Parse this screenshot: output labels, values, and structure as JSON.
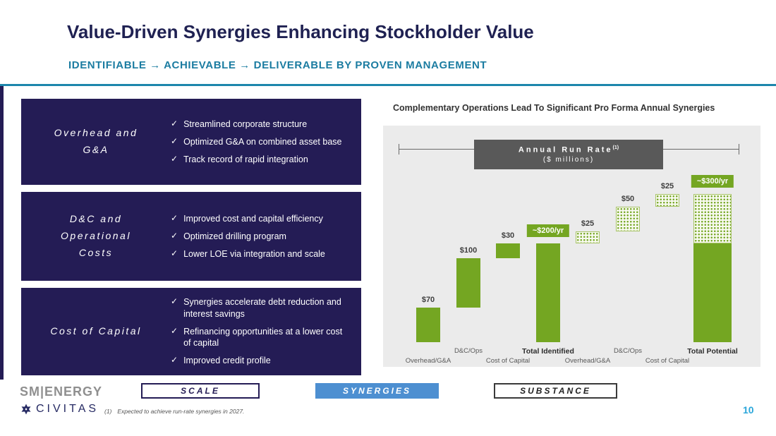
{
  "slide": {
    "title": "Value-Driven Synergies Enhancing Stockholder Value",
    "subtitle": "IDENTIFIABLE → ACHIEVABLE → DELIVERABLE BY PROVEN MANAGEMENT",
    "page_number": "10",
    "footnote_num": "(1)",
    "footnote_text": "Expected to achieve run-rate synergies in 2027."
  },
  "icons": {
    "check": "✓"
  },
  "colors": {
    "navy": "#241c55",
    "teal": "#1b7ca1",
    "green": "#74a622",
    "banner_gray": "#595959",
    "chart_bg": "#ebebeb",
    "badge_blue": "#4d8fd1"
  },
  "synergy_boxes": [
    {
      "label": "Overhead and\nG&A",
      "items": [
        "Streamlined corporate structure",
        "Optimized G&A on combined asset base",
        "Track record of rapid integration"
      ]
    },
    {
      "label": "D&C and\nOperational\nCosts",
      "items": [
        "Improved cost and capital efficiency",
        "Optimized drilling program",
        "Lower LOE via integration and scale"
      ]
    },
    {
      "label": "Cost of Capital",
      "items": [
        "Synergies accelerate debt reduction and interest savings",
        "Refinancing opportunities at a lower cost of capital",
        "Improved credit profile"
      ]
    }
  ],
  "chart": {
    "title": "Complementary Operations Lead To Significant Pro Forma Annual Synergies",
    "banner": {
      "title": "Annual Run Rate",
      "sup": "(1)",
      "subtitle": "($ millions)"
    }
  },
  "chart_data": {
    "type": "bar",
    "subtype": "waterfall",
    "unit": "$ millions",
    "ylim": [
      0,
      300
    ],
    "bars": [
      {
        "axis_label": "Overhead/G&A",
        "axis_row": 2,
        "base": 0,
        "value": 70,
        "pattern": "solid",
        "value_label": "$70"
      },
      {
        "axis_label": "D&C/Ops",
        "axis_row": 1,
        "base": 70,
        "value": 100,
        "pattern": "solid",
        "value_label": "$100"
      },
      {
        "axis_label": "Cost of Capital",
        "axis_row": 2,
        "base": 170,
        "value": 30,
        "pattern": "solid",
        "value_label": "$30"
      },
      {
        "axis_label": "Total Identified",
        "axis_row": 1,
        "axis_bold": true,
        "base": 0,
        "value": 200,
        "pattern": "solid",
        "value_label": "~$200/yr",
        "label_style": "box"
      },
      {
        "axis_label": "Overhead/G&A",
        "axis_row": 2,
        "base": 200,
        "value": 25,
        "pattern": "hatched",
        "value_label": "$25"
      },
      {
        "axis_label": "D&C/Ops",
        "axis_row": 1,
        "base": 225,
        "value": 50,
        "pattern": "hatched",
        "value_label": "$50"
      },
      {
        "axis_label": "Cost of Capital",
        "axis_row": 2,
        "base": 275,
        "value": 25,
        "pattern": "hatched",
        "value_label": "$25"
      },
      {
        "axis_label": "Total Potential",
        "axis_row": 1,
        "axis_bold": true,
        "base": 0,
        "value": 300,
        "segments": [
          {
            "value": 200,
            "pattern": "solid"
          },
          {
            "value": 100,
            "pattern": "hatched"
          }
        ],
        "value_label": "~$300/yr",
        "label_style": "box"
      }
    ]
  },
  "badges": [
    {
      "label": "SCALE"
    },
    {
      "label": "SYNERGIES"
    },
    {
      "label": "SUBSTANCE"
    }
  ],
  "footer": {
    "logo_sm": "SM|ENERGY",
    "logo_civitas": "CIVITAS"
  }
}
